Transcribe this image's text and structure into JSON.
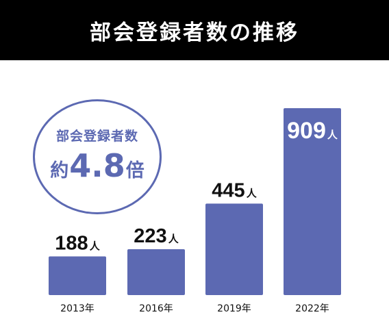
{
  "header": {
    "title": "部会登録者数の推移"
  },
  "badge": {
    "label": "部会登録者数",
    "prefix": "約",
    "value": "4.8",
    "suffix": "倍"
  },
  "colors": {
    "bar": "#5c69b2",
    "header_bg": "#000000",
    "text": "#111111"
  },
  "chart_data": {
    "type": "bar",
    "title": "部会登録者数の推移",
    "categories": [
      "2013年",
      "2016年",
      "2019年",
      "2022年"
    ],
    "values": [
      188,
      223,
      445,
      909
    ],
    "unit": "人",
    "ylim": [
      0,
      1000
    ],
    "grid": false
  }
}
